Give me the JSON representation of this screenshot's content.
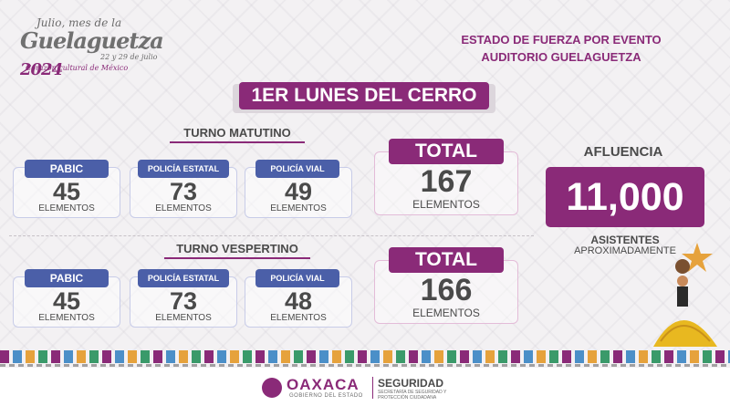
{
  "logo": {
    "line1": "Julio, mes de la",
    "line2": "Guelaguetza",
    "year": "2024",
    "dates": "22 y 29 de julio",
    "tagline": "Corazón cultural de México"
  },
  "header": {
    "line1": "ESTADO DE FUERZA POR EVENTO",
    "line2": "AUDITORIO GUELAGUETZA"
  },
  "event_title": "1ER LUNES DEL CERRO",
  "shifts": [
    {
      "label": "TURNO MATUTINO",
      "units": [
        {
          "name": "PABIC",
          "count": "45",
          "unit": "ELEMENTOS"
        },
        {
          "name": "POLICÍA ESTATAL",
          "count": "73",
          "unit": "ELEMENTOS"
        },
        {
          "name": "POLICÍA VIAL",
          "count": "49",
          "unit": "ELEMENTOS"
        }
      ],
      "total_label": "TOTAL",
      "total": "167",
      "total_unit": "ELEMENTOS"
    },
    {
      "label": "TURNO VESPERTINO",
      "units": [
        {
          "name": "PABIC",
          "count": "45",
          "unit": "ELEMENTOS"
        },
        {
          "name": "POLICÍA ESTATAL",
          "count": "73",
          "unit": "ELEMENTOS"
        },
        {
          "name": "POLICÍA VIAL",
          "count": "48",
          "unit": "ELEMENTOS"
        }
      ],
      "total_label": "TOTAL",
      "total": "166",
      "total_unit": "ELEMENTOS"
    }
  ],
  "attendance": {
    "label": "AFLUENCIA",
    "value": "11,000",
    "sub1": "ASISTENTES",
    "sub2": "APROXIMADAMENTE"
  },
  "footer": {
    "oaxaca": "OAXACA",
    "gobierno": "GOBIERNO DEL ESTADO",
    "seguridad": "SEGURIDAD",
    "secretaria1": "SECRETARÍA DE SEGURIDAD Y",
    "secretaria2": "PROTECCIÓN CIUDADANA"
  },
  "colors": {
    "accent": "#8a2a78",
    "unit_chip": "#4b5fa8",
    "text": "#4a4a4a"
  }
}
